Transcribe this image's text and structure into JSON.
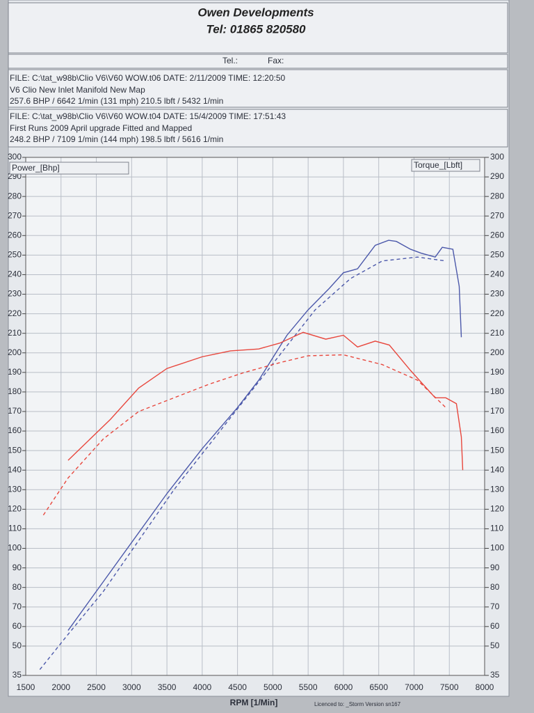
{
  "chart_data": {
    "type": "line",
    "title": "Owen Developments",
    "subtitle": "Tel: 01865 820580",
    "contact_labels": [
      "Tel.:",
      "Fax:"
    ],
    "runs": [
      {
        "file": "FILE: C:\\tat_w98b\\Clio V6\\V60 WOW.t06  DATE: 2/11/2009  TIME: 12:20:50",
        "description": "V6 Clio New Inlet Manifold New Map",
        "summary": "257.6 BHP / 6642 1/min (131 mph)    210.5 lbft / 5432 1/min"
      },
      {
        "file": "FILE: C:\\tat_w98b\\Clio V6\\V60 WOW.t04  DATE: 15/4/2009  TIME: 17:51:43",
        "description": "First Runs 2009 April  upgrade Fitted and Mapped",
        "summary": "248.2 BHP / 7109 1/min (144 mph)    198.5 lbft / 5616 1/min"
      }
    ],
    "x_label": "RPM  [1/Min]",
    "y_label": "Power_[Bhp]",
    "y2_label": "Torque_[Lbft]",
    "footer": "Licenced to: _Storm   Version sn167",
    "xlim": [
      1500,
      8000
    ],
    "xticks": [
      1500,
      2000,
      2500,
      3000,
      3500,
      4000,
      4500,
      5000,
      5500,
      6000,
      6500,
      7000,
      7500,
      8000
    ],
    "ylim": [
      35,
      300
    ],
    "yticks": [
      35,
      50,
      60,
      70,
      80,
      90,
      100,
      110,
      120,
      130,
      140,
      150,
      160,
      170,
      180,
      190,
      200,
      210,
      220,
      230,
      240,
      250,
      260,
      270,
      280,
      290,
      300
    ],
    "y2lim": [
      35,
      300
    ],
    "y2ticks": [
      35,
      50,
      60,
      70,
      80,
      90,
      100,
      110,
      120,
      130,
      140,
      150,
      160,
      170,
      180,
      190,
      200,
      210,
      220,
      230,
      240,
      250,
      260,
      270,
      280,
      290,
      300
    ],
    "grid": true,
    "series": [
      {
        "color": "#4b58aa",
        "style": "solid",
        "x": [
          2100,
          2600,
          3100,
          3500,
          4000,
          4500,
          4800,
          5200,
          5500,
          5800,
          6000,
          6200,
          6450,
          6640,
          6750,
          6950,
          7100,
          7300,
          7400,
          7550,
          7640,
          7670
        ],
        "values": [
          58,
          83,
          108,
          128,
          151,
          172,
          186,
          209,
          222,
          233,
          241,
          243,
          255,
          257.6,
          257,
          253,
          251,
          249,
          254,
          253,
          234,
          208
        ]
      },
      {
        "color": "#4b58aa",
        "style": "dashed",
        "x": [
          1700,
          2100,
          2600,
          3100,
          3600,
          4100,
          4600,
          5100,
          5600,
          6100,
          6550,
          7050,
          7450
        ],
        "values": [
          38,
          56,
          78,
          104,
          130,
          153,
          176,
          199,
          222,
          238,
          247,
          249,
          247
        ]
      },
      {
        "color": "#e8473d",
        "style": "solid",
        "axis": "y2",
        "x": [
          2100,
          2700,
          3100,
          3500,
          4000,
          4400,
          4800,
          5100,
          5430,
          5750,
          6000,
          6200,
          6450,
          6650,
          6950,
          7300,
          7450,
          7600,
          7670,
          7690
        ],
        "values": [
          145,
          166,
          182,
          192,
          198,
          201,
          202,
          205,
          210.5,
          207,
          209,
          203,
          206,
          204,
          191,
          177,
          177,
          174,
          157,
          140
        ]
      },
      {
        "color": "#e8473d",
        "style": "dashed",
        "axis": "y2",
        "x": [
          1750,
          2100,
          2600,
          3100,
          3600,
          4100,
          4600,
          5100,
          5500,
          6000,
          6550,
          7050,
          7450
        ],
        "values": [
          117,
          136,
          156,
          170,
          177,
          184,
          190,
          195,
          198.5,
          199,
          194,
          186,
          172
        ]
      }
    ]
  }
}
